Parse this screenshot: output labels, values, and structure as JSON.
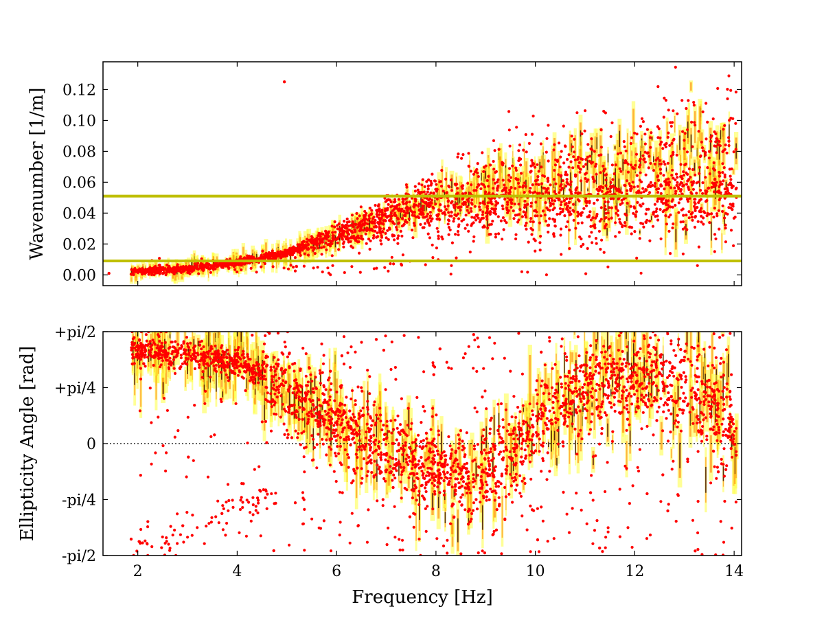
{
  "chart_data": [
    {
      "type": "scatter",
      "title": "",
      "xlabel": "",
      "ylabel": "Wavenumber [1/m]",
      "xlim": [
        1.3,
        14.15
      ],
      "ylim": [
        -0.007,
        0.138
      ],
      "xticks": [
        2,
        4,
        6,
        8,
        10,
        12,
        14
      ],
      "xtick_labels_visible": false,
      "yticks": [
        0.0,
        0.02,
        0.04,
        0.06,
        0.08,
        0.1,
        0.12
      ],
      "ytick_labels": [
        "0.00",
        "0.02",
        "0.04",
        "0.06",
        "0.08",
        "0.10",
        "0.12"
      ],
      "grid": false,
      "background": "density shading (black-red-yellow) behind points",
      "point_color": "#ff0000",
      "hlines": [
        {
          "y": 0.051,
          "color": "#bfbf00"
        },
        {
          "y": 0.009,
          "color": "#bfbf00"
        }
      ],
      "trend": {
        "x": [
          1.8,
          2,
          3,
          4,
          4.5,
          5,
          6,
          7,
          8,
          9,
          10,
          11,
          12,
          13,
          14
        ],
        "y": [
          0.001,
          0.002,
          0.004,
          0.008,
          0.011,
          0.014,
          0.025,
          0.036,
          0.048,
          0.056,
          0.058,
          0.06,
          0.064,
          0.068,
          0.068
        ]
      },
      "outliers": [
        {
          "x": 4.95,
          "y": 0.125
        },
        {
          "x": 1.42,
          "y": 0.001
        }
      ]
    },
    {
      "type": "scatter",
      "title": "",
      "xlabel": "Frequency [Hz]",
      "ylabel": "Ellipticity Angle [rad]",
      "xlim": [
        1.3,
        14.15
      ],
      "ylim": [
        -1.5708,
        1.5708
      ],
      "xticks": [
        2,
        4,
        6,
        8,
        10,
        12,
        14
      ],
      "xtick_labels": [
        "2",
        "4",
        "6",
        "8",
        "10",
        "12",
        "14"
      ],
      "yticks": [
        -1.5708,
        -0.7854,
        0,
        0.7854,
        1.5708
      ],
      "ytick_labels": [
        "-pi/2",
        "-pi/4",
        "0",
        "+pi/4",
        "+pi/2"
      ],
      "grid": false,
      "zero_line": {
        "y": 0,
        "style": "dotted",
        "color": "#000000"
      },
      "background": "density shading (black-red-yellow) behind points",
      "point_color": "#ff0000",
      "trend": {
        "x": [
          2,
          3,
          4,
          5,
          6,
          7,
          8,
          8.7,
          9.5,
          10,
          11,
          12,
          13,
          14
        ],
        "y": [
          1.3,
          1.25,
          1.15,
          0.75,
          0.35,
          -0.05,
          -0.4,
          -0.55,
          -0.2,
          0.3,
          0.75,
          0.95,
          0.8,
          0.3
        ]
      },
      "lower_branch": {
        "x": [
          2.2,
          2.5,
          3,
          3.5,
          4,
          4.5
        ],
        "y": [
          -1.35,
          -1.4,
          -1.3,
          -1.1,
          -0.9,
          -0.8
        ]
      }
    }
  ]
}
